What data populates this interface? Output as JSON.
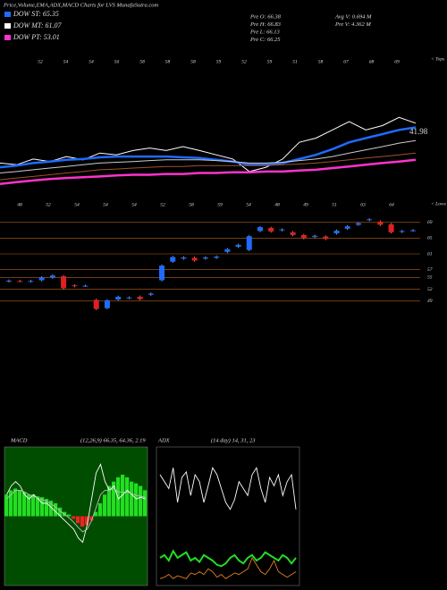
{
  "header": {
    "title": "Price,Volume,EMA,ADX,MACD Charts for LVS MunafaSutra.com",
    "legend": [
      {
        "label": "DOW ST: 65.35",
        "color": "#1e6bff"
      },
      {
        "label": "DOW MT: 61.07",
        "color": "#ffffff"
      },
      {
        "label": "DOW PT: 53.01",
        "color": "#ff33cc"
      }
    ],
    "info": [
      "Pre  O: 66.38",
      "Pre  H: 66.83",
      "Pre  L: 66.13",
      "Pre  C: 66.25",
      "Avg V: 0.694  M",
      "Pre  V: 4.362  M"
    ]
  },
  "chart_data": [
    {
      "type": "line",
      "ylim": [
        30,
        82
      ],
      "annotation": "41.98",
      "tops_label": "< Tops",
      "top_labels": [
        "52",
        "54",
        "54",
        "56",
        "58",
        "58",
        "58",
        "59",
        "52",
        "59",
        "51",
        "58",
        "67",
        "68",
        "69"
      ],
      "series": [
        {
          "color": "#ffffff",
          "width": 1,
          "values": [
            41.7,
            41,
            43.3,
            42.3,
            44.3,
            43,
            45.7,
            45,
            46.7,
            47.7,
            46.7,
            48.3,
            46.7,
            45,
            43.3,
            38.3,
            40,
            43.3,
            50,
            51.7,
            55,
            58.3,
            55,
            56.7,
            60,
            57.7
          ]
        },
        {
          "color": "#1e6bff",
          "width": 2.5,
          "values": [
            40,
            40.7,
            41.7,
            42.3,
            43,
            43.3,
            44,
            44.3,
            44.3,
            44.3,
            44.3,
            44,
            43.7,
            43,
            42.3,
            41,
            41,
            41.7,
            43.3,
            45,
            47.3,
            50,
            51.7,
            53.3,
            55,
            56
          ]
        },
        {
          "color": "#cccccc",
          "width": 1,
          "values": [
            37.7,
            38.3,
            39,
            39.7,
            40.3,
            41,
            41.7,
            42,
            42.3,
            42.7,
            43,
            43,
            43,
            42.7,
            42.3,
            41.7,
            41.7,
            42,
            42.7,
            43.3,
            44.3,
            45.7,
            47,
            48.3,
            49.7,
            50.7
          ]
        },
        {
          "color": "#a0522d",
          "width": 1,
          "values": [
            35,
            35.7,
            36.3,
            37,
            37.7,
            38.3,
            39,
            39.3,
            39.7,
            40,
            40.3,
            40.3,
            40.7,
            40.7,
            40.7,
            40.7,
            40.7,
            41,
            41.3,
            41.7,
            42.3,
            43,
            43.7,
            44.3,
            45,
            45.7
          ]
        },
        {
          "color": "#ff33cc",
          "width": 2.5,
          "values": [
            33.3,
            34,
            34.7,
            35.3,
            35.7,
            36,
            36.3,
            36.7,
            37,
            37,
            37.3,
            37.3,
            37.7,
            37.7,
            38,
            38,
            38.3,
            38.3,
            38.7,
            39,
            39.7,
            40.3,
            41,
            41.7,
            42.3,
            43
          ]
        }
      ]
    },
    {
      "type": "candlestick",
      "ylim": [
        46,
        71
      ],
      "yticks": [
        69,
        65,
        61,
        57,
        55,
        52,
        49
      ],
      "grid_color": "#b8641e",
      "up_color": "#1e6bff",
      "down_color": "#e02020",
      "lows_label": "< Lows",
      "low_labels": [
        "48",
        "52",
        "54",
        "54",
        "54",
        "52",
        "58",
        "59",
        "54",
        "48",
        "49",
        "51",
        "63",
        "64"
      ],
      "open": [
        54,
        54.1,
        54,
        54.3,
        55,
        55.3,
        53,
        52.9,
        49.3,
        47.2,
        49.4,
        49.8,
        50.1,
        50.6,
        54.3,
        59,
        59.8,
        60,
        59.8,
        60,
        61.5,
        62.8,
        62,
        66.8,
        67.6,
        67,
        66.5,
        65.8,
        65.3,
        65.4,
        66.2,
        67.4,
        68.4,
        69.6,
        69.2,
        68.5,
        66.6,
        66.9
      ],
      "close": [
        54.2,
        54,
        54.1,
        55,
        55.5,
        52.3,
        52.8,
        52.9,
        47,
        49.2,
        50.1,
        49.9,
        49.5,
        50.9,
        58,
        60.2,
        60.1,
        59.3,
        60.1,
        60.3,
        62.2,
        63.3,
        65.5,
        67.8,
        66.7,
        67.2,
        65.8,
        65,
        65.6,
        64.8,
        66.9,
        68,
        68.8,
        69.8,
        68.4,
        66.5,
        66.8,
        67
      ],
      "high": [
        54.5,
        54.4,
        54.4,
        55.3,
        55.8,
        55.6,
        53.3,
        53.2,
        49.6,
        49.5,
        50.4,
        50.2,
        50.4,
        51.2,
        58.3,
        60.5,
        60.4,
        60.3,
        60.4,
        60.6,
        62.5,
        63.6,
        65.8,
        68.1,
        67.9,
        67.5,
        66.8,
        66.1,
        65.9,
        65.7,
        67.2,
        68.3,
        69.1,
        70.1,
        69.5,
        68.8,
        67.1,
        67.3
      ],
      "low": [
        53.7,
        53.8,
        53.7,
        54,
        54.7,
        52,
        52.5,
        52.6,
        46.7,
        46.9,
        49.1,
        49.5,
        49.2,
        50.3,
        54,
        58.7,
        59.5,
        59,
        59.5,
        59.7,
        61.2,
        62.5,
        61.7,
        66.5,
        66.4,
        66.7,
        65.5,
        64.7,
        65,
        64.5,
        65.9,
        67.1,
        68.1,
        69.3,
        68.1,
        66.2,
        66.3,
        66.6
      ]
    },
    {
      "type": "macd",
      "title": "MACD",
      "subtitle": "(12,26,9) 66.35, 64.36, 2.19",
      "ylim": [
        -8,
        8
      ],
      "pos_color": "#22dd22",
      "neg_color": "#ee2222",
      "histogram": [
        2.5,
        3,
        3.2,
        3,
        2.8,
        2.5,
        2.5,
        2.3,
        2.2,
        2,
        1.8,
        1.5,
        1,
        0.5,
        0.2,
        -0.3,
        -0.8,
        -1.2,
        -1,
        -0.5,
        0.5,
        1.5,
        2.5,
        3.5,
        4,
        4.5,
        4.8,
        4.5,
        4,
        3.8,
        3.5,
        3
      ],
      "lines": [
        {
          "color": "#ffffff",
          "values": [
            2.5,
            3.5,
            4,
            3.5,
            2.5,
            2,
            2.5,
            2,
            1.5,
            1.5,
            1,
            0.5,
            0,
            -0.5,
            -1,
            -1.5,
            -2.5,
            -3,
            -1,
            2,
            5,
            6,
            4,
            3,
            3.5,
            2,
            2.5,
            3,
            2.5,
            2,
            2.2,
            2
          ]
        },
        {
          "color": "#bbbbbb",
          "values": [
            2,
            2.5,
            3,
            3,
            2.8,
            2.5,
            2.3,
            2.1,
            1.9,
            1.7,
            1.4,
            1,
            0.6,
            0.2,
            -0.2,
            -0.7,
            -1.3,
            -1.8,
            -1.5,
            -0.5,
            1,
            2.5,
            3,
            3,
            3.2,
            2.8,
            2.8,
            2.8,
            2.6,
            2.4,
            2.3,
            2.2
          ]
        }
      ]
    },
    {
      "type": "adx",
      "title": "ADX",
      "subtitle": "(14 day) 14, 31, 23",
      "ylim": [
        0,
        100
      ],
      "lines": [
        {
          "color": "#ffffff",
          "values": [
            80,
            75,
            70,
            85,
            60,
            78,
            82,
            65,
            80,
            75,
            60,
            72,
            85,
            80,
            70,
            60,
            55,
            62,
            75,
            70,
            65,
            80,
            85,
            70,
            60,
            78,
            72,
            80,
            65,
            75,
            80,
            55
          ]
        },
        {
          "color": "#22dd22",
          "values": [
            20,
            22,
            18,
            25,
            20,
            22,
            24,
            18,
            20,
            17,
            22,
            20,
            18,
            15,
            14,
            16,
            20,
            22,
            18,
            16,
            20,
            22,
            18,
            20,
            24,
            22,
            20,
            18,
            22,
            20,
            16,
            20
          ]
        },
        {
          "color": "#e08020",
          "values": [
            5,
            6,
            8,
            5,
            7,
            6,
            5,
            9,
            8,
            10,
            8,
            12,
            10,
            6,
            8,
            5,
            7,
            9,
            8,
            10,
            12,
            20,
            15,
            10,
            8,
            12,
            18,
            10,
            8,
            6,
            8,
            10
          ]
        }
      ]
    }
  ]
}
